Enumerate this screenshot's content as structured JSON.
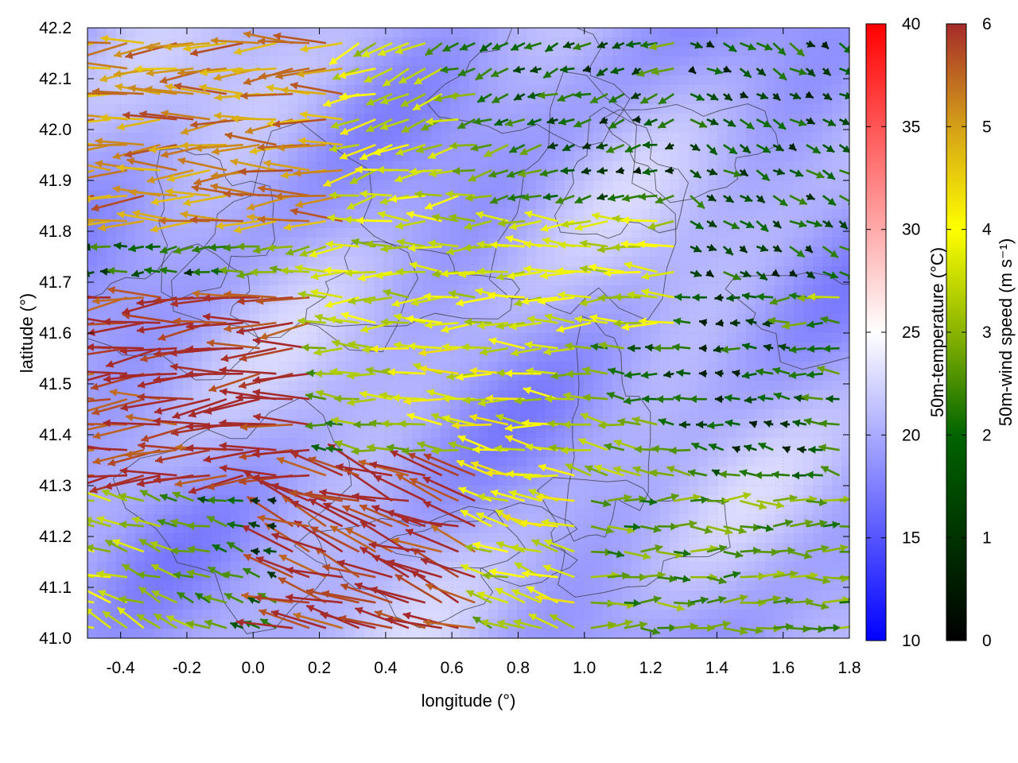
{
  "chart_data": {
    "type": "heatmap",
    "xlabel": "longitude (°)",
    "ylabel": "latitude (°)",
    "xlim": [
      -0.5,
      1.8
    ],
    "ylim": [
      41.0,
      42.2
    ],
    "x_ticks": [
      "-0.4",
      "-0.2",
      "0.0",
      "0.2",
      "0.4",
      "0.6",
      "0.8",
      "1.0",
      "1.2",
      "1.4",
      "1.6",
      "1.8"
    ],
    "y_ticks": [
      "41.0",
      "41.1",
      "41.2",
      "41.3",
      "41.4",
      "41.5",
      "41.6",
      "41.7",
      "41.8",
      "41.9",
      "42.0",
      "42.1",
      "42.2"
    ],
    "grid": true,
    "background_field": {
      "name": "50m-temperature",
      "colorbar_label": "50m-temperature (°C)",
      "range": [
        10,
        40
      ],
      "ticks": [
        "10",
        "15",
        "20",
        "25",
        "30",
        "35",
        "40"
      ],
      "colors": [
        "#0000ff",
        "#ffffff",
        "#ff0000"
      ],
      "typical_range": [
        17,
        23
      ]
    },
    "vector_field": {
      "name": "50m-wind speed",
      "colorbar_label": "50m-wind speed (m s⁻¹)",
      "range": [
        0,
        6
      ],
      "ticks": [
        "0",
        "1",
        "2",
        "3",
        "4",
        "5",
        "6"
      ],
      "colors": [
        "#000000",
        "#006400",
        "#8ab400",
        "#ffff00",
        "#d4a017",
        "#a52a2a"
      ],
      "regions": [
        {
          "desc": "west",
          "lon": [
            -0.5,
            0.2
          ],
          "lat": [
            41.3,
            41.7
          ],
          "dir_deg": 185,
          "speed": 6
        },
        {
          "desc": "southwest",
          "lon": [
            0.1,
            0.7
          ],
          "lat": [
            41.0,
            41.35
          ],
          "dir_deg": 160,
          "speed": 6
        },
        {
          "desc": "northwest",
          "lon": [
            -0.5,
            0.3
          ],
          "lat": [
            41.8,
            42.2
          ],
          "dir_deg": 182,
          "speed": 5
        },
        {
          "desc": "center",
          "lon": [
            0.3,
            1.3
          ],
          "lat": [
            41.6,
            41.85
          ],
          "dir_deg": 180,
          "speed": 3
        },
        {
          "desc": "northeast",
          "lon": [
            1.3,
            1.8
          ],
          "lat": [
            41.7,
            42.2
          ],
          "dir_deg": 330,
          "speed": 1
        },
        {
          "desc": "southeast",
          "lon": [
            1.0,
            1.8
          ],
          "lat": [
            41.0,
            41.3
          ],
          "dir_deg": 0,
          "speed": 2
        }
      ]
    }
  }
}
